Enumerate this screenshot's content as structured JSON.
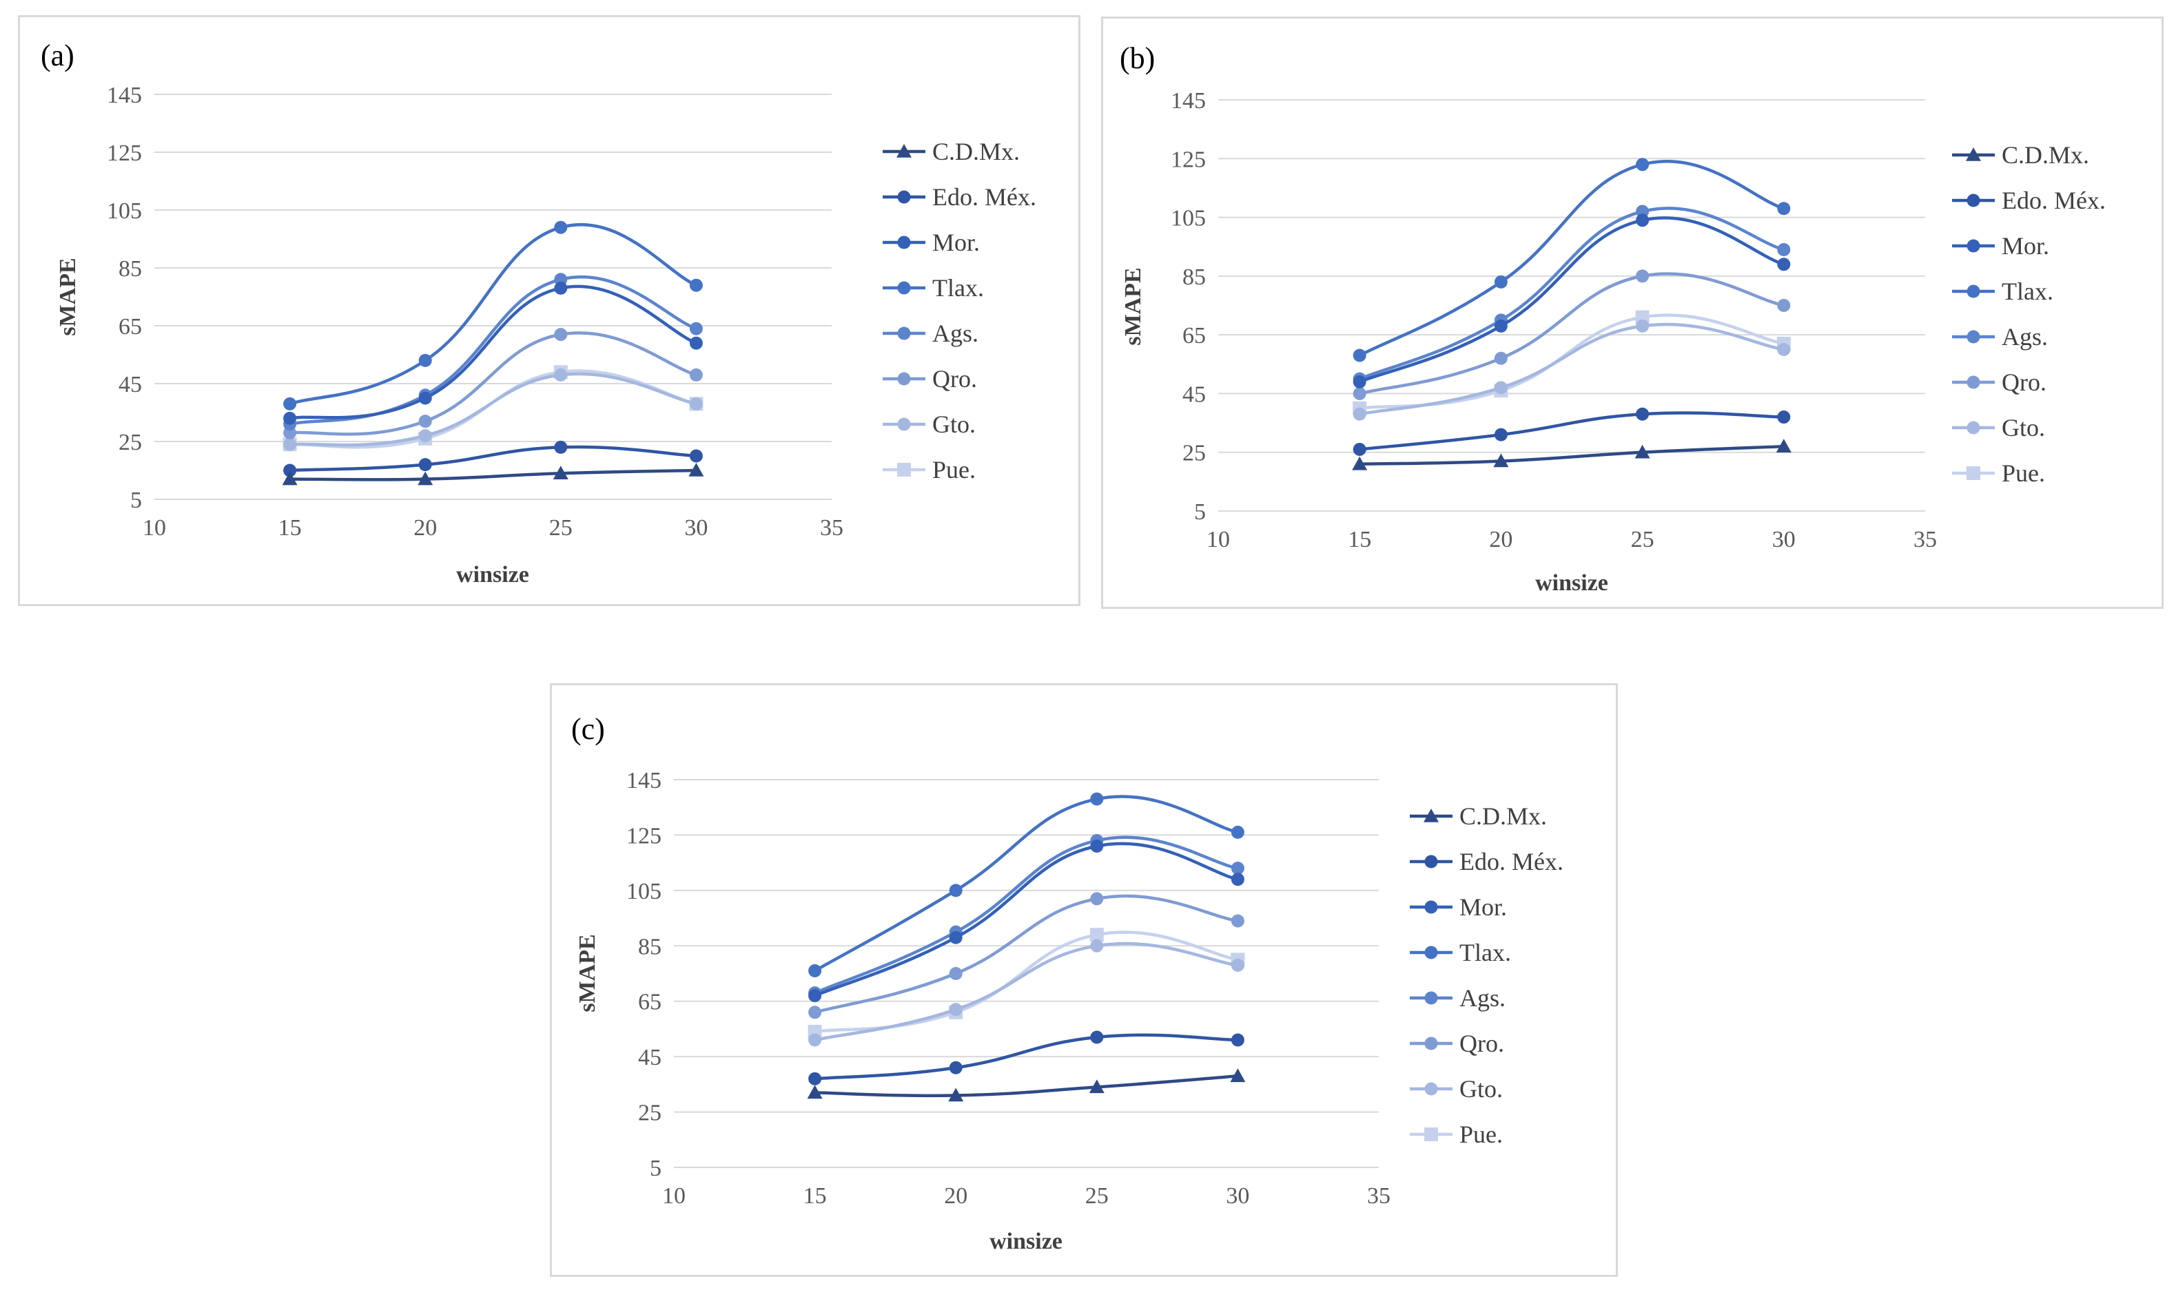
{
  "colors": {
    "C.D.Mx.": "#2e4a86",
    "Edo. Méx.": "#2f55a4",
    "Mor.": "#3460b8",
    "Tlax.": "#4472c4",
    "Ags.": "#5b84cd",
    "Qro.": "#7f9bd3",
    "Gto.": "#a4b7df",
    "Pue.": "#c5d1ec"
  },
  "chart_data": [
    {
      "type": "line",
      "panel": "(a)",
      "xlabel": "winsize",
      "ylabel": "sMAPE",
      "xlim": [
        10,
        35
      ],
      "ylim": [
        5,
        145
      ],
      "xticks": [
        10,
        15,
        20,
        25,
        30,
        35
      ],
      "yticks": [
        5,
        25,
        45,
        65,
        85,
        105,
        125,
        145
      ],
      "x": [
        15,
        20,
        25,
        30
      ],
      "series": [
        {
          "name": "C.D.Mx.",
          "marker": "triangle",
          "values": [
            12,
            12,
            14,
            15
          ]
        },
        {
          "name": "Edo. Méx.",
          "marker": "circle",
          "values": [
            15,
            17,
            23,
            20
          ]
        },
        {
          "name": "Mor.",
          "marker": "circle",
          "values": [
            33,
            40,
            78,
            59
          ]
        },
        {
          "name": "Tlax.",
          "marker": "circle",
          "values": [
            38,
            53,
            99,
            79
          ]
        },
        {
          "name": "Ags.",
          "marker": "circle",
          "values": [
            31,
            41,
            81,
            64
          ]
        },
        {
          "name": "Qro.",
          "marker": "circle",
          "values": [
            28,
            32,
            62,
            48
          ]
        },
        {
          "name": "Gto.",
          "marker": "circle",
          "values": [
            24,
            27,
            48,
            38
          ]
        },
        {
          "name": "Pue.",
          "marker": "square",
          "values": [
            24,
            26,
            49,
            38
          ]
        }
      ]
    },
    {
      "type": "line",
      "panel": "(b)",
      "xlabel": "winsize",
      "ylabel": "sMAPE",
      "xlim": [
        10,
        35
      ],
      "ylim": [
        5,
        145
      ],
      "xticks": [
        10,
        15,
        20,
        25,
        30,
        35
      ],
      "yticks": [
        5,
        25,
        45,
        65,
        85,
        105,
        125,
        145
      ],
      "x": [
        15,
        20,
        25,
        30
      ],
      "series": [
        {
          "name": "C.D.Mx.",
          "marker": "triangle",
          "values": [
            21,
            22,
            25,
            27
          ]
        },
        {
          "name": "Edo. Méx.",
          "marker": "circle",
          "values": [
            26,
            31,
            38,
            37
          ]
        },
        {
          "name": "Mor.",
          "marker": "circle",
          "values": [
            49,
            68,
            104,
            89
          ]
        },
        {
          "name": "Tlax.",
          "marker": "circle",
          "values": [
            58,
            83,
            123,
            108
          ]
        },
        {
          "name": "Ags.",
          "marker": "circle",
          "values": [
            50,
            70,
            107,
            94
          ]
        },
        {
          "name": "Qro.",
          "marker": "circle",
          "values": [
            45,
            57,
            85,
            75
          ]
        },
        {
          "name": "Gto.",
          "marker": "circle",
          "values": [
            38,
            47,
            68,
            60
          ]
        },
        {
          "name": "Pue.",
          "marker": "square",
          "values": [
            40,
            46,
            71,
            62
          ]
        }
      ]
    },
    {
      "type": "line",
      "panel": "(c)",
      "xlabel": "winsize",
      "ylabel": "sMAPE",
      "xlim": [
        10,
        35
      ],
      "ylim": [
        5,
        145
      ],
      "xticks": [
        10,
        15,
        20,
        25,
        30,
        35
      ],
      "yticks": [
        5,
        25,
        45,
        65,
        85,
        105,
        125,
        145
      ],
      "x": [
        15,
        20,
        25,
        30
      ],
      "series": [
        {
          "name": "C.D.Mx.",
          "marker": "triangle",
          "values": [
            32,
            31,
            34,
            38
          ]
        },
        {
          "name": "Edo. Méx.",
          "marker": "circle",
          "values": [
            37,
            41,
            52,
            51
          ]
        },
        {
          "name": "Mor.",
          "marker": "circle",
          "values": [
            67,
            88,
            121,
            109
          ]
        },
        {
          "name": "Tlax.",
          "marker": "circle",
          "values": [
            76,
            105,
            138,
            126
          ]
        },
        {
          "name": "Ags.",
          "marker": "circle",
          "values": [
            68,
            90,
            123,
            113
          ]
        },
        {
          "name": "Qro.",
          "marker": "circle",
          "values": [
            61,
            75,
            102,
            94
          ]
        },
        {
          "name": "Gto.",
          "marker": "circle",
          "values": [
            51,
            62,
            85,
            78
          ]
        },
        {
          "name": "Pue.",
          "marker": "square",
          "values": [
            54,
            61,
            89,
            80
          ]
        }
      ]
    }
  ]
}
